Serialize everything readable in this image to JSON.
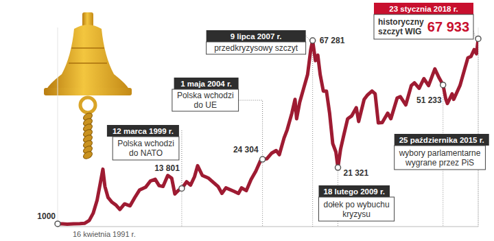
{
  "chart_data": {
    "type": "line",
    "color": "#9e1b32",
    "x": [
      1991.29,
      1991.6,
      1991.9,
      1992.3,
      1992.7,
      1993.0,
      1993.3,
      1993.55,
      1993.8,
      1994.0,
      1994.17,
      1994.3,
      1994.5,
      1994.75,
      1995.0,
      1995.25,
      1995.55,
      1995.9,
      1996.2,
      1996.5,
      1996.9,
      1997.2,
      1997.5,
      1997.75,
      1998.0,
      1998.3,
      1998.55,
      1998.75,
      1999.0,
      1999.19,
      1999.5,
      1999.75,
      2000.0,
      2000.2,
      2000.5,
      2000.9,
      2001.2,
      2001.5,
      2001.75,
      2002.0,
      2002.5,
      2002.8,
      2003.0,
      2003.3,
      2003.6,
      2003.9,
      2004.2,
      2004.33,
      2004.6,
      2004.9,
      2005.2,
      2005.4,
      2005.7,
      2005.9,
      2006.2,
      2006.4,
      2006.5,
      2006.7,
      2006.95,
      2007.2,
      2007.4,
      2007.52,
      2007.7,
      2007.85,
      2008.0,
      2008.2,
      2008.4,
      2008.6,
      2008.8,
      2009.0,
      2009.13,
      2009.3,
      2009.5,
      2009.75,
      2010.0,
      2010.3,
      2010.45,
      2010.8,
      2011.0,
      2011.3,
      2011.5,
      2011.7,
      2011.95,
      2012.3,
      2012.5,
      2012.9,
      2013.1,
      2013.45,
      2013.8,
      2014.0,
      2014.3,
      2014.6,
      2014.9,
      2015.3,
      2015.55,
      2015.82,
      2016.0,
      2016.1,
      2016.4,
      2016.5,
      2016.9,
      2017.2,
      2017.4,
      2017.6,
      2017.8,
      2017.95,
      2018.06
    ],
    "values": [
      1000,
      980,
      850,
      1000,
      1050,
      1150,
      2200,
      4800,
      9500,
      15500,
      20760,
      14500,
      10500,
      8800,
      7800,
      6200,
      8200,
      7500,
      10500,
      13200,
      14300,
      16500,
      17100,
      14800,
      14500,
      18500,
      17500,
      11800,
      13200,
      13801,
      16200,
      15000,
      18000,
      22000,
      18500,
      17500,
      16000,
      14500,
      12000,
      14000,
      12800,
      12000,
      14000,
      13000,
      17000,
      20000,
      23800,
      24304,
      24500,
      26500,
      27500,
      26000,
      32000,
      35000,
      41000,
      46000,
      39000,
      45000,
      50000,
      55000,
      64000,
      67281,
      60000,
      62000,
      55000,
      49000,
      49000,
      41000,
      30000,
      27000,
      21321,
      28000,
      33000,
      39000,
      40000,
      43000,
      38000,
      46000,
      47500,
      49000,
      48000,
      37500,
      37600,
      41000,
      39000,
      46500,
      47000,
      44000,
      51000,
      52000,
      50000,
      53500,
      51000,
      57000,
      54000,
      51233,
      46000,
      44500,
      48000,
      46000,
      51000,
      57000,
      61000,
      61500,
      64000,
      62500,
      67933
    ],
    "xlim": [
      1991.29,
      2018.06
    ],
    "ylim": [
      0,
      72000
    ],
    "tick_labels": false,
    "annotations": [
      {
        "x": 1991.29,
        "value": 1000,
        "date": "16 kwietnia 1991 r."
      },
      {
        "x": 1999.19,
        "value": 13801,
        "value_label": "13 801",
        "date": "12 marca 1999 r.",
        "text": [
          "Polska wchodzi",
          "do NATO"
        ]
      },
      {
        "x": 2004.33,
        "value": 24304,
        "value_label": "24 304",
        "date": "1 maja 2004 r.",
        "text": [
          "Polska wchodzi",
          "do UE"
        ]
      },
      {
        "x": 2007.52,
        "value": 67281,
        "value_label": "67 281",
        "date": "9 lipca 2007 r.",
        "text": [
          "przedkryzysowy szczyt"
        ]
      },
      {
        "x": 2009.13,
        "value": 21321,
        "value_label": "21 321",
        "date": "18 lutego 2009 r.",
        "text": [
          "dołek po wybuchu",
          "kryzysu"
        ]
      },
      {
        "x": 2015.82,
        "value": 51233,
        "value_label": "51 233",
        "date": "25 października 2015 r.",
        "text": [
          "wybory parlamentarne",
          "wygrane przez PiS"
        ]
      },
      {
        "x": 2018.06,
        "value": 67933,
        "value_label": "67 933",
        "date": "23 stycznia 2018 r.",
        "text": [
          "historyczny",
          "szczyt WIG"
        ]
      }
    ]
  }
}
